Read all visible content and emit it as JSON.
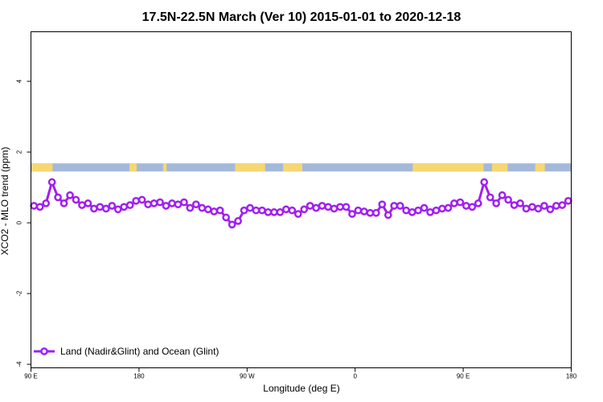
{
  "colors": {
    "series": "#a020f0",
    "ocean_band": "#a4b9da",
    "land_band": "#f7d774",
    "axis": "#000000"
  },
  "chart_data": {
    "type": "line",
    "title": "17.5N-22.5N March (Ver 10)   2015-01-01 to 2020-12-18",
    "xlabel": "Longitude (deg E)",
    "ylabel": "XCO2 - MLO trend (ppm)",
    "xlim": [
      90,
      540
    ],
    "ylim": [
      -4.1,
      5.4
    ],
    "x_ticks": [
      {
        "value": 90,
        "label": "90 E"
      },
      {
        "value": 180,
        "label": "180"
      },
      {
        "value": 270,
        "label": "90 W"
      },
      {
        "value": 360,
        "label": "0"
      },
      {
        "value": 450,
        "label": "90 E"
      },
      {
        "value": 540,
        "label": "180"
      }
    ],
    "y_ticks": [
      {
        "value": -4,
        "label": "-4"
      },
      {
        "value": -2,
        "label": "-2"
      },
      {
        "value": 0,
        "label": "0"
      },
      {
        "value": 2,
        "label": "2"
      },
      {
        "value": 4,
        "label": "4"
      }
    ],
    "grid": false,
    "legend_position": "bottom-left",
    "surface_band": {
      "y_range": [
        1.45,
        1.68
      ],
      "land_segments": [
        [
          90,
          108
        ],
        [
          172,
          178
        ],
        [
          200,
          203
        ],
        [
          260,
          285
        ],
        [
          300,
          316
        ],
        [
          408,
          467
        ],
        [
          474,
          487
        ],
        [
          510,
          518
        ]
      ]
    },
    "series": [
      {
        "name": "Land (Nadir&Glint) and Ocean (Glint)",
        "x": [
          92.5,
          97.5,
          102.5,
          107.5,
          112.5,
          117.5,
          122.5,
          127.5,
          132.5,
          137.5,
          142.5,
          147.5,
          152.5,
          157.5,
          162.5,
          167.5,
          172.5,
          177.5,
          182.5,
          187.5,
          192.5,
          197.5,
          202.5,
          207.5,
          212.5,
          217.5,
          222.5,
          227.5,
          232.5,
          237.5,
          242.5,
          247.5,
          252.5,
          257.5,
          262.5,
          267.5,
          272.5,
          277.5,
          282.5,
          287.5,
          292.5,
          297.5,
          302.5,
          307.5,
          312.5,
          317.5,
          322.5,
          327.5,
          332.5,
          337.5,
          342.5,
          347.5,
          352.5,
          357.5,
          362.5,
          367.5,
          372.5,
          377.5,
          382.5,
          387.5,
          392.5,
          397.5,
          402.5,
          407.5,
          412.5,
          417.5,
          422.5,
          427.5,
          432.5,
          437.5,
          442.5,
          447.5,
          452.5,
          457.5,
          462.5,
          467.5,
          472.5,
          477.5,
          482.5,
          487.5,
          492.5,
          497.5,
          502.5,
          507.5,
          512.5,
          517.5,
          522.5,
          527.5,
          532.5,
          537.5
        ],
        "values": [
          0.48,
          0.45,
          0.55,
          1.15,
          0.72,
          0.55,
          0.78,
          0.65,
          0.5,
          0.55,
          0.4,
          0.45,
          0.4,
          0.48,
          0.38,
          0.45,
          0.5,
          0.62,
          0.65,
          0.52,
          0.55,
          0.58,
          0.48,
          0.55,
          0.52,
          0.58,
          0.42,
          0.52,
          0.42,
          0.38,
          0.32,
          0.35,
          0.15,
          -0.05,
          0.05,
          0.35,
          0.42,
          0.35,
          0.35,
          0.3,
          0.3,
          0.3,
          0.38,
          0.35,
          0.25,
          0.38,
          0.48,
          0.42,
          0.48,
          0.45,
          0.4,
          0.45,
          0.45,
          0.25,
          0.35,
          0.32,
          0.28,
          0.28,
          0.52,
          0.22,
          0.48,
          0.48,
          0.35,
          0.3,
          0.35,
          0.42,
          0.3,
          0.35,
          0.4,
          0.42,
          0.55,
          0.58,
          0.48,
          0.45,
          0.55,
          1.15,
          0.72,
          0.55,
          0.78,
          0.65,
          0.5,
          0.55,
          0.4,
          0.45,
          0.4,
          0.48,
          0.38,
          0.48,
          0.5,
          0.62
        ]
      }
    ]
  }
}
